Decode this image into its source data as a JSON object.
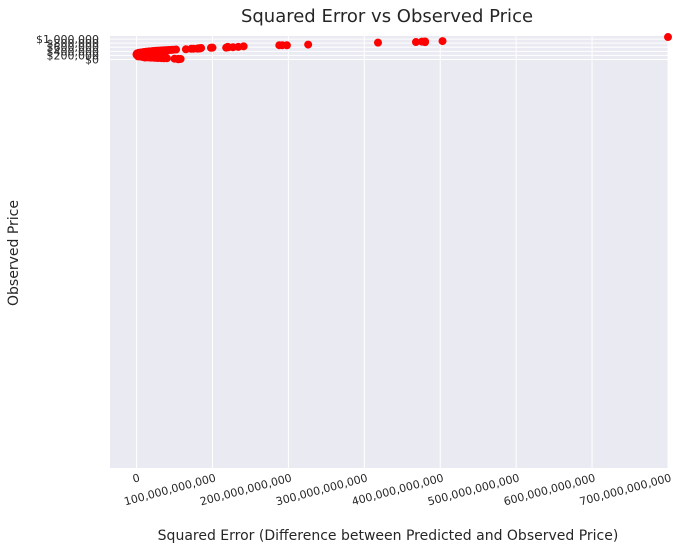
{
  "chart_data": {
    "type": "scatter",
    "title": "Squared Error vs Observed Price",
    "xlabel": "Squared Error (Difference between Predicted and Observed Price)",
    "ylabel": "Observed Price",
    "xlim": [
      -35000000000,
      700000000000
    ],
    "ylim": [
      -20000000,
      1150000
    ],
    "x_ticks": [
      0,
      100000000000,
      200000000000,
      300000000000,
      400000000000,
      500000000000,
      600000000000,
      700000000000
    ],
    "x_tick_labels": [
      "0",
      "100,000,000,000",
      "200,000,000,000",
      "300,000,000,000",
      "400,000,000,000",
      "500,000,000,000",
      "600,000,000,000",
      "700,000,000,000"
    ],
    "y_ticks": [
      0,
      200000,
      400000,
      600000,
      800000,
      1000000
    ],
    "y_tick_labels": [
      "$0",
      "$200,000",
      "$400,000",
      "$600,000",
      "$800,000",
      "$1,000,000"
    ],
    "grid": true,
    "colors": {
      "marker": "#ff0000",
      "plot_bg": "#eaeaf2",
      "grid": "#ffffff",
      "text": "#262626"
    },
    "points": [
      [
        700000000000,
        1100000
      ],
      [
        403000000000,
        900000
      ],
      [
        380000000000,
        880000
      ],
      [
        376000000000,
        875000
      ],
      [
        368000000000,
        855000
      ],
      [
        380000000000,
        850000
      ],
      [
        318000000000,
        825000
      ],
      [
        226000000000,
        730000
      ],
      [
        188000000000,
        700000
      ],
      [
        192000000000,
        698000
      ],
      [
        198000000000,
        695000
      ],
      [
        141000000000,
        645000
      ],
      [
        120000000000,
        615000
      ],
      [
        134000000000,
        615000
      ],
      [
        127000000000,
        600000
      ],
      [
        121000000000,
        598000
      ],
      [
        118000000000,
        580000
      ],
      [
        100000000000,
        578000
      ],
      [
        98000000000,
        574000
      ],
      [
        85000000000,
        560000
      ],
      [
        82000000000,
        550000
      ],
      [
        83000000000,
        538000
      ],
      [
        80000000000,
        530000
      ],
      [
        75000000000,
        528000
      ],
      [
        72000000000,
        525000
      ],
      [
        65000000000,
        500000
      ],
      [
        52000000000,
        488000
      ],
      [
        48000000000,
        478000
      ],
      [
        46000000000,
        470000
      ],
      [
        43000000000,
        465000
      ],
      [
        40000000000,
        458000
      ],
      [
        37000000000,
        450000
      ],
      [
        35000000000,
        445000
      ],
      [
        33000000000,
        440000
      ],
      [
        31000000000,
        435000
      ],
      [
        29000000000,
        430000
      ],
      [
        27000000000,
        425000
      ],
      [
        40000000000,
        435000
      ],
      [
        35000000000,
        425000
      ],
      [
        25000000000,
        420000
      ],
      [
        23000000000,
        415000
      ],
      [
        21000000000,
        408000
      ],
      [
        19000000000,
        400000
      ],
      [
        17000000000,
        395000
      ],
      [
        26000000000,
        392000
      ],
      [
        15000000000,
        388000
      ],
      [
        22000000000,
        380000
      ],
      [
        13000000000,
        380000
      ],
      [
        18000000000,
        372000
      ],
      [
        12000000000,
        370000
      ],
      [
        9000000000,
        360000
      ],
      [
        15000000000,
        360000
      ],
      [
        10000000000,
        352000
      ],
      [
        7000000000,
        345000
      ],
      [
        13000000000,
        342000
      ],
      [
        5000000000,
        335000
      ],
      [
        8000000000,
        330000
      ],
      [
        12000000000,
        328000
      ],
      [
        3000000000,
        322000
      ],
      [
        6000000000,
        315000
      ],
      [
        2000000000,
        310000
      ],
      [
        8000000000,
        305000
      ],
      [
        1000000000,
        300000
      ],
      [
        3000000000,
        295000
      ],
      [
        500000000,
        288000
      ],
      [
        1500000000,
        280000
      ],
      [
        300000000,
        272000
      ],
      [
        1000000000,
        265000
      ],
      [
        100000000,
        258000
      ],
      [
        400000000,
        250000
      ],
      [
        100000000,
        242000
      ],
      [
        600000000,
        235000
      ],
      [
        200000000,
        228000
      ],
      [
        1200000000,
        220000
      ],
      [
        500000000,
        212000
      ],
      [
        2000000000,
        205000
      ],
      [
        1000000000,
        198000
      ],
      [
        3000000000,
        192000
      ],
      [
        1800000000,
        185000
      ],
      [
        4000000000,
        180000
      ],
      [
        2500000000,
        175000
      ],
      [
        5000000000,
        170000
      ],
      [
        3500000000,
        165000
      ],
      [
        6000000000,
        160000
      ],
      [
        2000000000,
        150000
      ],
      [
        7000000000,
        155000
      ],
      [
        8000000000,
        148000
      ],
      [
        9000000000,
        142000
      ],
      [
        6000000000,
        138000
      ],
      [
        10000000000,
        135000
      ],
      [
        11000000000,
        128000
      ],
      [
        8000000000,
        125000
      ],
      [
        12000000000,
        122000
      ],
      [
        14000000000,
        118000
      ],
      [
        10000000000,
        112000
      ],
      [
        16000000000,
        115000
      ],
      [
        18000000000,
        110000
      ],
      [
        13000000000,
        105000
      ],
      [
        20000000000,
        105000
      ],
      [
        11000000000,
        100000
      ],
      [
        22000000000,
        98000
      ],
      [
        17000000000,
        95000
      ],
      [
        25000000000,
        92000
      ],
      [
        20000000000,
        90000
      ],
      [
        28000000000,
        88000
      ],
      [
        30000000000,
        85000
      ],
      [
        24000000000,
        82000
      ],
      [
        32000000000,
        80000
      ],
      [
        35000000000,
        75000
      ],
      [
        28000000000,
        72000
      ],
      [
        38000000000,
        70000
      ],
      [
        40000000000,
        62000
      ],
      [
        33000000000,
        65000
      ],
      [
        36000000000,
        60000
      ],
      [
        50000000000,
        38000
      ],
      [
        55000000000,
        28000
      ],
      [
        58000000000,
        25000
      ],
      [
        55000000000,
        12000
      ]
    ]
  }
}
